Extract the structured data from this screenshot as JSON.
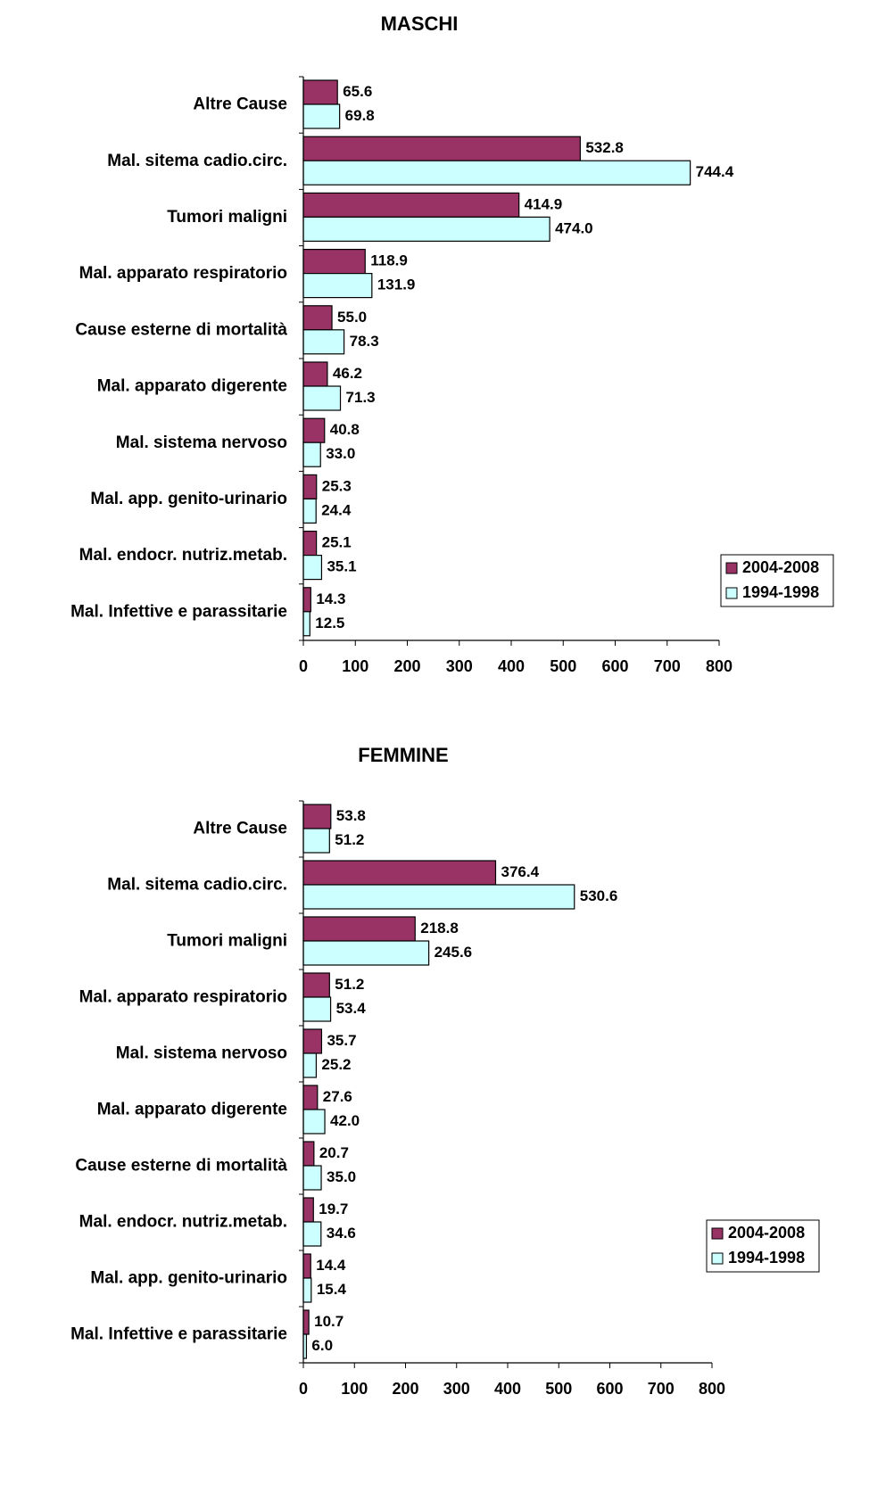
{
  "chart_data": [
    {
      "type": "bar",
      "orientation": "horizontal",
      "title": "MASCHI",
      "categories": [
        "Altre Cause",
        "Mal. sitema cadio.circ.",
        "Tumori maligni",
        "Mal. apparato respiratorio",
        "Cause esterne di mortalità",
        "Mal. apparato digerente",
        "Mal. sistema nervoso",
        "Mal. app. genito-urinario",
        "Mal. endocr. nutriz.metab.",
        "Mal. Infettive e parassitarie"
      ],
      "series": [
        {
          "name": "2004-2008",
          "color": "#993366",
          "values": [
            65.6,
            532.8,
            414.9,
            118.9,
            55.0,
            46.2,
            40.8,
            25.3,
            25.1,
            14.3
          ],
          "value_labels": [
            "65.6",
            "532.8",
            "414.9",
            "118.9",
            "55.0",
            "46.2",
            "40.8",
            "25.3",
            "25.1",
            "14.3"
          ]
        },
        {
          "name": "1994-1998",
          "color": "#ccffff",
          "values": [
            69.8,
            744.4,
            474.0,
            131.9,
            78.3,
            71.3,
            33.0,
            24.4,
            35.1,
            12.5
          ],
          "value_labels": [
            "69.8",
            "744.4",
            "474.0",
            "131.9",
            "78.3",
            "71.3",
            "33.0",
            "24.4",
            "35.1",
            "12.5"
          ]
        }
      ],
      "xlim": [
        0,
        800
      ],
      "xticks": [
        0,
        100,
        200,
        300,
        400,
        500,
        600,
        700,
        800
      ],
      "legend": "right"
    },
    {
      "type": "bar",
      "orientation": "horizontal",
      "title": "FEMMINE",
      "categories": [
        "Altre Cause",
        "Mal. sitema cadio.circ.",
        "Tumori maligni",
        "Mal. apparato respiratorio",
        "Mal. sistema nervoso",
        "Mal. apparato digerente",
        "Cause esterne di mortalità",
        "Mal. endocr. nutriz.metab.",
        "Mal. app. genito-urinario",
        "Mal. Infettive e parassitarie"
      ],
      "series": [
        {
          "name": "2004-2008",
          "color": "#993366",
          "values": [
            53.8,
            376.4,
            218.8,
            51.2,
            35.7,
            27.6,
            20.7,
            19.7,
            14.4,
            10.7
          ],
          "value_labels": [
            "53.8",
            "376.4",
            "218.8",
            "51.2",
            "35.7",
            "27.6",
            "20.7",
            "19.7",
            "14.4",
            "10.7"
          ]
        },
        {
          "name": "1994-1998",
          "color": "#ccffff",
          "values": [
            51.2,
            530.6,
            245.6,
            53.4,
            25.2,
            42.0,
            35.0,
            34.6,
            15.4,
            6.0
          ],
          "value_labels": [
            "51.2",
            "530.6",
            "245.6",
            "53.4",
            "25.2",
            "42.0",
            "35.0",
            "34.6",
            "15.4",
            "6.0"
          ]
        }
      ],
      "xlim": [
        0,
        800
      ],
      "xticks": [
        0,
        100,
        200,
        300,
        400,
        500,
        600,
        700,
        800
      ],
      "legend": "right"
    }
  ]
}
